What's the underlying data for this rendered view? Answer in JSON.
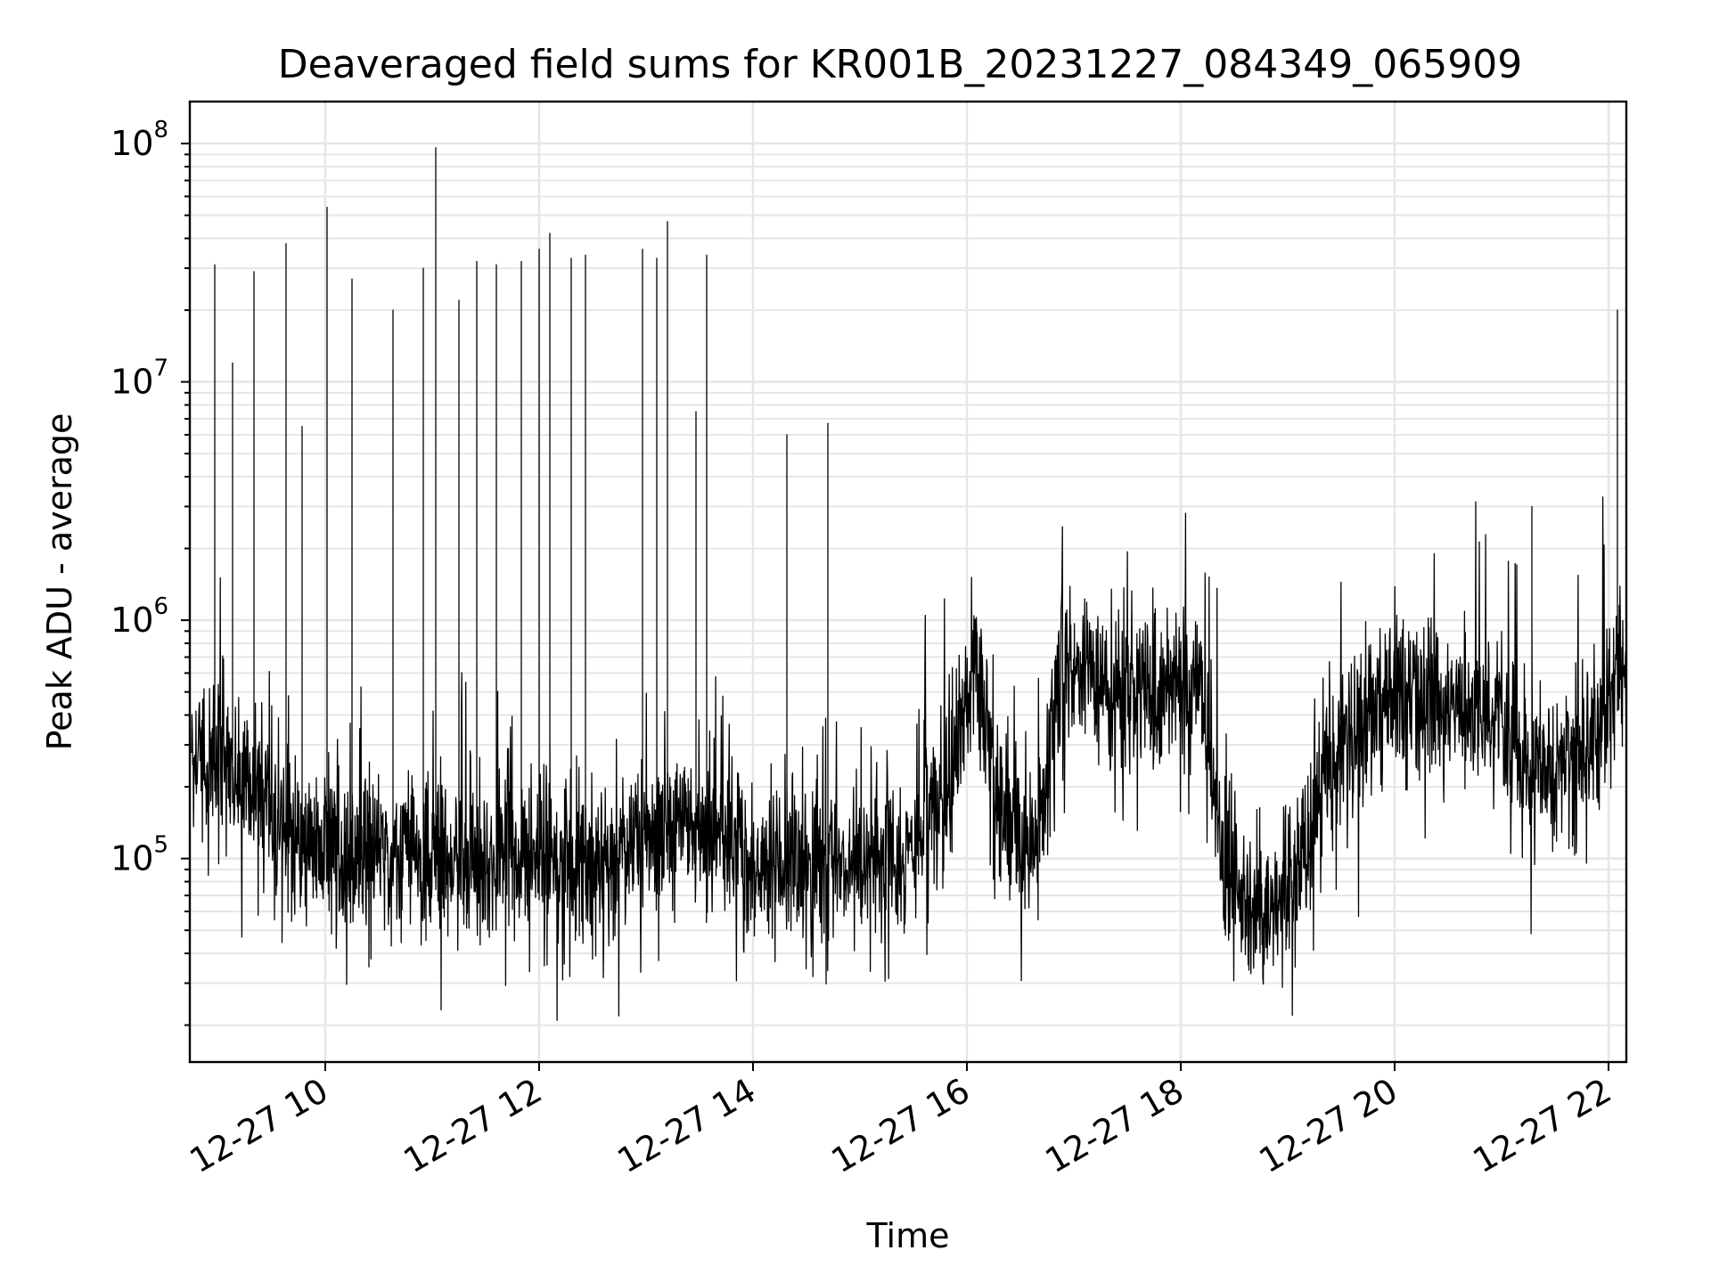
{
  "chart_data": {
    "type": "line",
    "title": "Deaveraged field sums for KR001B_20231227_084349_065909",
    "xlabel": "Time",
    "ylabel": "Peak ADU - average",
    "x_type": "datetime",
    "xlim": [
      "2023-12-27 08:44",
      "2023-12-27 22:10"
    ],
    "ylim": [
      14000,
      150000000
    ],
    "yscale": "log",
    "grid": "on (major and minor)",
    "legend": "none",
    "x_ticks": [
      {
        "value": "2023-12-27 10:00",
        "label": "12-27 10"
      },
      {
        "value": "2023-12-27 12:00",
        "label": "12-27 12"
      },
      {
        "value": "2023-12-27 14:00",
        "label": "12-27 14"
      },
      {
        "value": "2023-12-27 16:00",
        "label": "12-27 16"
      },
      {
        "value": "2023-12-27 18:00",
        "label": "12-27 18"
      },
      {
        "value": "2023-12-27 20:00",
        "label": "12-27 20"
      },
      {
        "value": "2023-12-27 22:00",
        "label": "12-27 22"
      }
    ],
    "y_ticks": [
      {
        "value": 100000,
        "base": "10",
        "exp": "5"
      },
      {
        "value": 1000000,
        "base": "10",
        "exp": "6"
      },
      {
        "value": 10000000,
        "base": "10",
        "exp": "7"
      },
      {
        "value": 100000000,
        "base": "10",
        "exp": "8"
      }
    ],
    "line_color": "#000000",
    "series": [
      {
        "x": [
          "2023-12-27 08:45",
          "2023-12-27 09:00",
          "2023-12-27 09:15",
          "2023-12-27 09:30",
          "2023-12-27 09:45",
          "2023-12-27 10:00",
          "2023-12-27 10:30",
          "2023-12-27 11:00",
          "2023-12-27 11:30",
          "2023-12-27 12:00",
          "2023-12-27 12:30",
          "2023-12-27 13:00",
          "2023-12-27 13:30",
          "2023-12-27 14:00",
          "2023-12-27 14:30",
          "2023-12-27 15:00",
          "2023-12-27 15:30",
          "2023-12-27 15:50",
          "2023-12-27 16:05",
          "2023-12-27 16:20",
          "2023-12-27 16:40",
          "2023-12-27 16:55",
          "2023-12-27 17:30",
          "2023-12-27 17:50",
          "2023-12-27 18:10",
          "2023-12-27 18:25",
          "2023-12-27 18:45",
          "2023-12-27 19:05",
          "2023-12-27 19:30",
          "2023-12-27 20:00",
          "2023-12-27 20:30",
          "2023-12-27 21:00",
          "2023-12-27 21:10",
          "2023-12-27 21:30",
          "2023-12-27 21:50",
          "2023-12-27 22:10"
        ],
        "y": [
          280000,
          270000,
          220000,
          150000,
          120000,
          120000,
          110000,
          105000,
          100000,
          95000,
          100000,
          120000,
          140000,
          100000,
          90000,
          95000,
          110000,
          200000,
          700000,
          150000,
          120000,
          700000,
          500000,
          500000,
          600000,
          80000,
          60000,
          80000,
          300000,
          500000,
          450000,
          400000,
          250000,
          200000,
          350000,
          700000
        ]
      }
    ],
    "spikes": [
      {
        "x": "2023-12-27 08:58",
        "y": 31000000
      },
      {
        "x": "2023-12-27 09:08",
        "y": 12000000
      },
      {
        "x": "2023-12-27 09:20",
        "y": 29000000
      },
      {
        "x": "2023-12-27 09:38",
        "y": 38000000
      },
      {
        "x": "2023-12-27 09:47",
        "y": 6500000
      },
      {
        "x": "2023-12-27 10:01",
        "y": 54000000
      },
      {
        "x": "2023-12-27 10:15",
        "y": 27000000
      },
      {
        "x": "2023-12-27 10:38",
        "y": 20000000
      },
      {
        "x": "2023-12-27 10:55",
        "y": 30000000
      },
      {
        "x": "2023-12-27 11:02",
        "y": 96000000
      },
      {
        "x": "2023-12-27 11:15",
        "y": 22000000
      },
      {
        "x": "2023-12-27 11:25",
        "y": 32000000
      },
      {
        "x": "2023-12-27 11:36",
        "y": 31000000
      },
      {
        "x": "2023-12-27 11:50",
        "y": 32000000
      },
      {
        "x": "2023-12-27 12:00",
        "y": 36000000
      },
      {
        "x": "2023-12-27 12:06",
        "y": 42000000
      },
      {
        "x": "2023-12-27 12:18",
        "y": 33000000
      },
      {
        "x": "2023-12-27 12:26",
        "y": 34000000
      },
      {
        "x": "2023-12-27 12:58",
        "y": 36000000
      },
      {
        "x": "2023-12-27 13:06",
        "y": 33000000
      },
      {
        "x": "2023-12-27 13:12",
        "y": 47000000
      },
      {
        "x": "2023-12-27 13:28",
        "y": 7500000
      },
      {
        "x": "2023-12-27 13:34",
        "y": 34000000
      },
      {
        "x": "2023-12-27 14:19",
        "y": 6000000
      },
      {
        "x": "2023-12-27 14:42",
        "y": 6700000
      },
      {
        "x": "2023-12-27 21:17",
        "y": 3000000
      },
      {
        "x": "2023-12-27 22:05",
        "y": 20000000
      }
    ]
  }
}
